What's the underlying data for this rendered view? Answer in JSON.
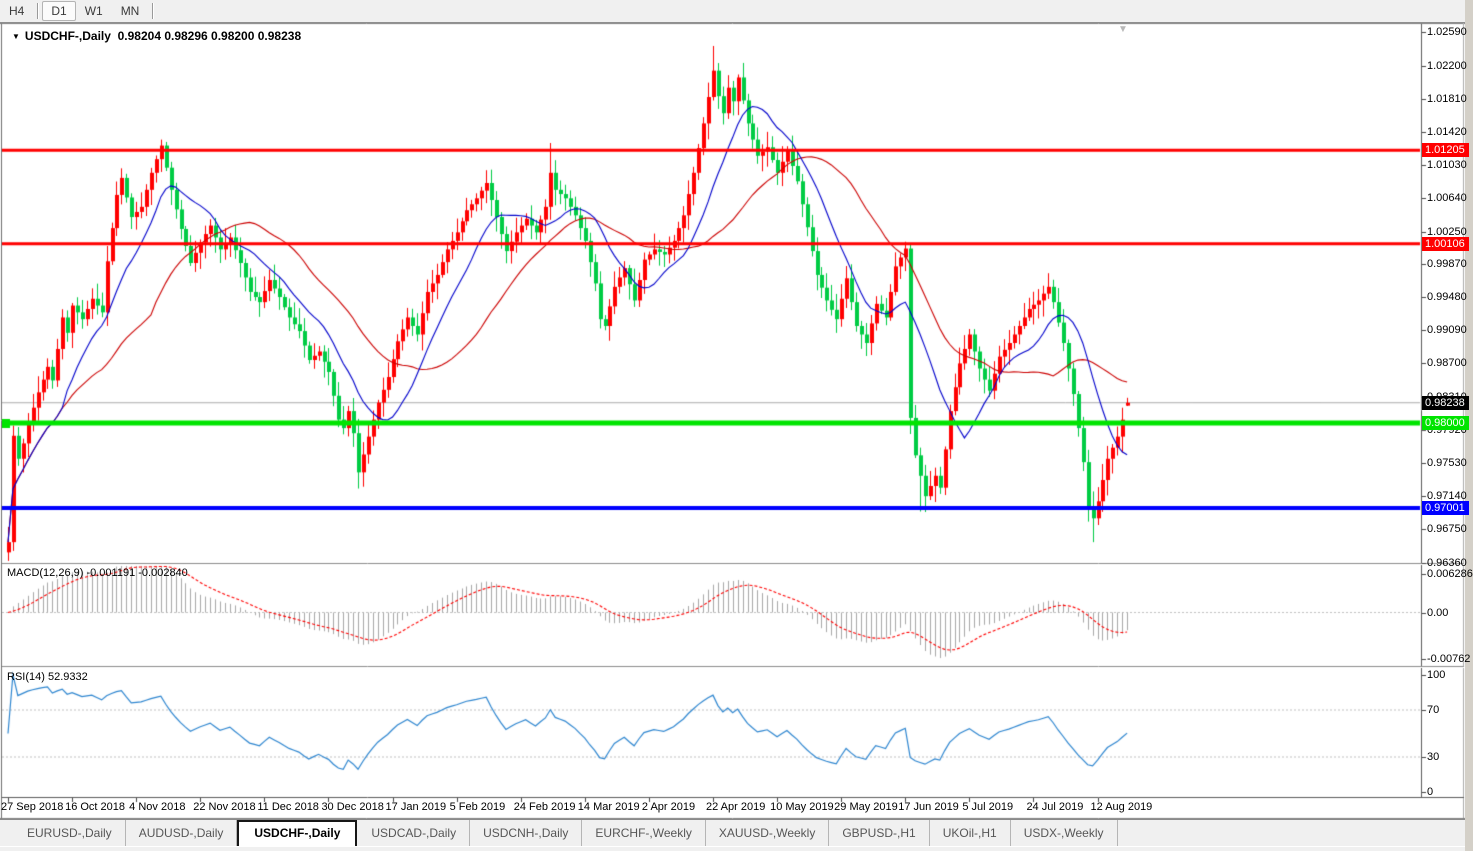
{
  "toolbar": {
    "buttons": [
      {
        "label": "H4",
        "active": false
      },
      {
        "label": "D1",
        "active": true
      },
      {
        "label": "W1",
        "active": false
      },
      {
        "label": "MN",
        "active": false
      }
    ]
  },
  "chart": {
    "title_symbol": "USDCHF-,Daily",
    "title_ohlc": "0.98204 0.98296 0.98200 0.98238",
    "macd_label": "MACD(12,26,9) -0.001191 -0.002840",
    "rsi_label": "RSI(14) 52.9332",
    "dropdown_icon": "▼",
    "shift_marker_icon": "▼"
  },
  "tabs": [
    {
      "label": "EURUSD-,Daily",
      "active": false
    },
    {
      "label": "AUDUSD-,Daily",
      "active": false
    },
    {
      "label": "USDCHF-,Daily",
      "active": true
    },
    {
      "label": "USDCAD-,Daily",
      "active": false
    },
    {
      "label": "USDCNH-,Daily",
      "active": false
    },
    {
      "label": "EURCHF-,Weekly",
      "active": false
    },
    {
      "label": "XAUUSD-,Weekly",
      "active": false
    },
    {
      "label": "GBPUSD-,H1",
      "active": false
    },
    {
      "label": "UKOil-,H1",
      "active": false
    },
    {
      "label": "USDX-,Weekly",
      "active": false
    }
  ],
  "chart_data": {
    "type": "candlestick",
    "symbol": "USDCHF-",
    "timeframe": "Daily",
    "current_ohlc": {
      "open": 0.98204,
      "high": 0.98296,
      "low": 0.982,
      "close": 0.98238
    },
    "colors": {
      "bull": "#FF0000",
      "bear": "#00CC44",
      "ma_fast": "#0000CC",
      "ma_slow": "#CC0000",
      "macd_hist": "#A8A8A8",
      "macd_signal": "#FF0000",
      "rsi_line": "#2E86D0",
      "level_dash": "#C0C0C0",
      "current_line": "#ABABAB"
    },
    "price_axis_labels": [
      "1.02590",
      "1.02200",
      "1.01810",
      "1.01420",
      "1.01030",
      "1.00640",
      "1.00250",
      "0.99870",
      "0.99480",
      "0.99090",
      "0.98700",
      "0.98310",
      "0.97920",
      "0.97530",
      "0.97140",
      "0.96750",
      "0.96360"
    ],
    "hlines": [
      {
        "price": 1.01205,
        "label": "1.01205",
        "color": "#FF0000",
        "thickness": 3
      },
      {
        "price": 1.00106,
        "label": "1.00106",
        "color": "#FF0000",
        "thickness": 3
      },
      {
        "price": 0.98,
        "label": "0.98000",
        "color": "#00E400",
        "thickness": 5
      },
      {
        "price": 0.97001,
        "label": "0.97001",
        "color": "#0000FF",
        "thickness": 4
      }
    ],
    "current_price_marker": {
      "price": 0.98238,
      "label": "0.98238",
      "chip_bg": "#000000"
    },
    "date_labels": [
      {
        "label": "27 Sep 2018",
        "i": 0
      },
      {
        "label": "16 Oct 2018",
        "i": 13
      },
      {
        "label": "4 Nov 2018",
        "i": 26
      },
      {
        "label": "22 Nov 2018",
        "i": 39
      },
      {
        "label": "11 Dec 2018",
        "i": 52
      },
      {
        "label": "30 Dec 2018",
        "i": 65
      },
      {
        "label": "17 Jan 2019",
        "i": 78
      },
      {
        "label": "5 Feb 2019",
        "i": 91
      },
      {
        "label": "24 Feb 2019",
        "i": 104
      },
      {
        "label": "14 Mar 2019",
        "i": 117
      },
      {
        "label": "2 Apr 2019",
        "i": 130
      },
      {
        "label": "22 Apr 2019",
        "i": 143
      },
      {
        "label": "10 May 2019",
        "i": 156
      },
      {
        "label": "29 May 2019",
        "i": 169
      },
      {
        "label": "17 Jun 2019",
        "i": 182
      },
      {
        "label": "5 Jul 2019",
        "i": 195
      },
      {
        "label": "24 Jul 2019",
        "i": 208
      },
      {
        "label": "12 Aug 2019",
        "i": 221
      }
    ],
    "num_candles": 228,
    "close_anchors": [
      [
        0,
        0.966
      ],
      [
        1,
        0.9785
      ],
      [
        2,
        0.9758
      ],
      [
        3,
        0.9776
      ],
      [
        4,
        0.98
      ],
      [
        6,
        0.9836
      ],
      [
        8,
        0.9866
      ],
      [
        9,
        0.985
      ],
      [
        11,
        0.9924
      ],
      [
        12,
        0.9906
      ],
      [
        13,
        0.9938
      ],
      [
        15,
        0.9922
      ],
      [
        17,
        0.9946
      ],
      [
        19,
        0.993
      ],
      [
        20,
        0.999
      ],
      [
        22,
        1.0068
      ],
      [
        23,
        1.0088
      ],
      [
        25,
        1.0042
      ],
      [
        27,
        1.0054
      ],
      [
        29,
        1.0094
      ],
      [
        31,
        1.0126
      ],
      [
        33,
        1.0074
      ],
      [
        35,
        1.0028
      ],
      [
        37,
        0.9988
      ],
      [
        39,
        1.0012
      ],
      [
        41,
        1.0032
      ],
      [
        43,
        1.0004
      ],
      [
        45,
        1.0018
      ],
      [
        47,
        0.9988
      ],
      [
        49,
        0.9954
      ],
      [
        51,
        0.9942
      ],
      [
        53,
        0.9968
      ],
      [
        55,
        0.9948
      ],
      [
        57,
        0.9924
      ],
      [
        59,
        0.9908
      ],
      [
        61,
        0.9874
      ],
      [
        63,
        0.9884
      ],
      [
        65,
        0.986
      ],
      [
        67,
        0.9804
      ],
      [
        68,
        0.9794
      ],
      [
        69,
        0.9814
      ],
      [
        70,
        0.9788
      ],
      [
        71,
        0.9742
      ],
      [
        73,
        0.9784
      ],
      [
        75,
        0.9824
      ],
      [
        77,
        0.9854
      ],
      [
        79,
        0.9896
      ],
      [
        81,
        0.9924
      ],
      [
        83,
        0.9904
      ],
      [
        85,
        0.9954
      ],
      [
        87,
        0.9974
      ],
      [
        89,
        1.0004
      ],
      [
        91,
        1.0024
      ],
      [
        93,
        1.005
      ],
      [
        95,
        1.0064
      ],
      [
        97,
        1.0082
      ],
      [
        99,
        1.0042
      ],
      [
        101,
        1.0002
      ],
      [
        103,
        1.0024
      ],
      [
        105,
        1.004
      ],
      [
        107,
        1.0024
      ],
      [
        109,
        1.0054
      ],
      [
        110,
        1.0094
      ],
      [
        111,
        1.0074
      ],
      [
        113,
        1.0064
      ],
      [
        115,
        1.0044
      ],
      [
        117,
        1.0014
      ],
      [
        119,
        0.9964
      ],
      [
        120,
        0.9922
      ],
      [
        121,
        0.9914
      ],
      [
        123,
        0.996
      ],
      [
        125,
        0.9982
      ],
      [
        127,
        0.9944
      ],
      [
        129,
        0.9992
      ],
      [
        131,
        1.0004
      ],
      [
        133,
        0.9998
      ],
      [
        135,
        1.0014
      ],
      [
        137,
        1.0044
      ],
      [
        139,
        1.0094
      ],
      [
        141,
        1.0152
      ],
      [
        143,
        1.0214
      ],
      [
        144,
        1.0184
      ],
      [
        145,
        1.0164
      ],
      [
        146,
        1.0194
      ],
      [
        147,
        1.0178
      ],
      [
        148,
        1.0206
      ],
      [
        150,
        1.0152
      ],
      [
        152,
        1.0114
      ],
      [
        154,
        1.0124
      ],
      [
        156,
        1.0094
      ],
      [
        158,
        1.012
      ],
      [
        160,
        1.0084
      ],
      [
        162,
        1.003
      ],
      [
        164,
        0.9974
      ],
      [
        166,
        0.9944
      ],
      [
        168,
        0.9922
      ],
      [
        170,
        0.997
      ],
      [
        172,
        0.9914
      ],
      [
        174,
        0.9894
      ],
      [
        176,
        0.994
      ],
      [
        178,
        0.9924
      ],
      [
        180,
        0.9984
      ],
      [
        182,
        1.0005
      ],
      [
        183,
        0.9806
      ],
      [
        184,
        0.9762
      ],
      [
        186,
        0.9714
      ],
      [
        188,
        0.9738
      ],
      [
        189,
        0.9724
      ],
      [
        191,
        0.9814
      ],
      [
        193,
        0.987
      ],
      [
        195,
        0.9904
      ],
      [
        197,
        0.9864
      ],
      [
        199,
        0.9838
      ],
      [
        201,
        0.9878
      ],
      [
        203,
        0.9894
      ],
      [
        205,
        0.9914
      ],
      [
        207,
        0.9934
      ],
      [
        209,
        0.9944
      ],
      [
        211,
        0.996
      ],
      [
        212,
        0.9942
      ],
      [
        214,
        0.9894
      ],
      [
        216,
        0.9834
      ],
      [
        218,
        0.9754
      ],
      [
        219,
        0.9702
      ],
      [
        220,
        0.9688
      ],
      [
        221,
        0.9708
      ],
      [
        223,
        0.9758
      ],
      [
        225,
        0.9784
      ],
      [
        227,
        0.98238
      ]
    ],
    "overrides": {
      "0": {
        "l": 0.9638
      },
      "31": {
        "h": 1.0133
      },
      "71": {
        "l": 0.9723
      },
      "97": {
        "h": 1.0097
      },
      "110": {
        "h": 1.0129
      },
      "143": {
        "h": 1.0243
      },
      "182": {
        "h": 1.0013
      },
      "185": {
        "l": 0.9696
      },
      "211": {
        "h": 0.9976
      },
      "220": {
        "l": 0.966
      },
      "227": {
        "o": 0.98204,
        "h": 0.98296,
        "l": 0.982,
        "c": 0.98238
      }
    },
    "moving_averages": [
      {
        "period": 12
      },
      {
        "period": 30
      }
    ],
    "macd": {
      "params": [
        12,
        26,
        9
      ],
      "current_macd": -0.001191,
      "current_signal": -0.00284,
      "axis": [
        {
          "text": "0.006286",
          "value": 0.006286
        },
        {
          "text": "0.00",
          "value": 0
        },
        {
          "text": "-0.00762",
          "value": -0.00762
        }
      ]
    },
    "rsi": {
      "period": 14,
      "current": 52.9332,
      "axis": [
        {
          "text": "100",
          "value": 100
        },
        {
          "text": "70",
          "value": 70
        },
        {
          "text": "30",
          "value": 30
        },
        {
          "text": "0",
          "value": 0
        }
      ],
      "levels": [
        70,
        30
      ]
    }
  }
}
